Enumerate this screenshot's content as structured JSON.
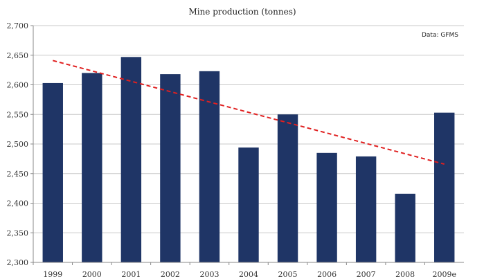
{
  "chart_data": {
    "type": "bar",
    "title": "Mine production (tonnes)",
    "annotation": "Data: GFMS",
    "categories": [
      "1999",
      "2000",
      "2001",
      "2002",
      "2003",
      "2004",
      "2005",
      "2006",
      "2007",
      "2008",
      "2009e"
    ],
    "values": [
      2603,
      2620,
      2647,
      2618,
      2623,
      2494,
      2550,
      2485,
      2479,
      2416,
      2553
    ],
    "ylim": [
      2300,
      2700
    ],
    "yticks": [
      2300,
      2350,
      2400,
      2450,
      2500,
      2550,
      2600,
      2650,
      2700
    ],
    "ytick_labels": [
      "2,300",
      "2,350",
      "2,400",
      "2,450",
      "2,500",
      "2,550",
      "2,600",
      "2,650",
      "2,700"
    ],
    "grid": true,
    "bar_color": "#1f3566",
    "trendline": {
      "style": "dashed",
      "color": "#e02020",
      "start": 2641,
      "end": 2466
    }
  }
}
